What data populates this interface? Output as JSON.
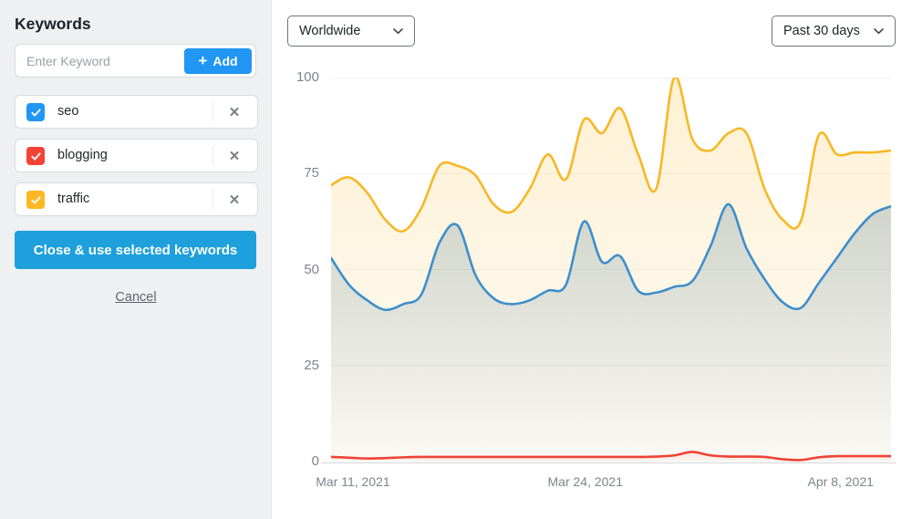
{
  "sidebar": {
    "title": "Keywords",
    "keyword_input": {
      "placeholder": "Enter Keyword",
      "add_label": "Add"
    },
    "keywords": [
      {
        "label": "seo",
        "checked": true,
        "color": "#2196f3"
      },
      {
        "label": "blogging",
        "checked": true,
        "color": "#f44336"
      },
      {
        "label": "traffic",
        "checked": true,
        "color": "#fcb722"
      }
    ],
    "remove_glyph": "✕",
    "close_button_label": "Close & use selected keywords",
    "cancel_label": "Cancel"
  },
  "toolbar": {
    "region_selected": "Worldwide",
    "range_selected": "Past 30 days"
  },
  "icons": {
    "add": "plus-icon",
    "dropdowns": "chevron-down-icon",
    "keyword_remove": "close-x-icon",
    "keyword_checkbox": "checkmark-icon"
  },
  "chart_data": {
    "type": "area",
    "title": "",
    "xlabel": "",
    "ylabel": "",
    "ylim": [
      0,
      100
    ],
    "yticks": [
      0,
      25,
      50,
      75,
      100
    ],
    "grid": true,
    "legend": "none",
    "xticks": [
      {
        "label": "Mar 11, 2021",
        "pos": 0.039
      },
      {
        "label": "Mar 24, 2021",
        "pos": 0.454
      },
      {
        "label": "Apr 8, 2021",
        "pos": 0.91
      }
    ],
    "series": [
      {
        "name": "traffic",
        "color": "#f7b825",
        "fill_top": "rgba(247,184,37,0.20)",
        "fill_bottom": "rgba(247,184,37,0.04)",
        "values": [
          72,
          74,
          70,
          63,
          60,
          66,
          77,
          77,
          74.5,
          67,
          65,
          71,
          80,
          73.5,
          89,
          85.5,
          92,
          80,
          71,
          100,
          84,
          81,
          85.5,
          85.5,
          71,
          63,
          62.5,
          85,
          80,
          80.5,
          80.5,
          81
        ]
      },
      {
        "name": "seo",
        "color": "#3e8ecb",
        "fill_top": "rgba(62,110,140,0.24)",
        "fill_bottom": "rgba(62,110,140,0.02)",
        "values": [
          53,
          46,
          42,
          39.5,
          41,
          43.5,
          57,
          61.5,
          48.5,
          42.5,
          41,
          42,
          44.5,
          46,
          62.5,
          52,
          53.5,
          44.5,
          44,
          45.5,
          47,
          56,
          67,
          55.5,
          47.5,
          41.5,
          40,
          46.5,
          53,
          59.5,
          64.5,
          66.5
        ]
      },
      {
        "name": "blogging",
        "color": "#ef4335",
        "fill_top": "rgba(244,67,54,0.10)",
        "fill_bottom": "rgba(244,67,54,0.02)",
        "values": [
          1.2,
          1.0,
          0.8,
          0.9,
          1.1,
          1.2,
          1.2,
          1.2,
          1.2,
          1.2,
          1.2,
          1.2,
          1.2,
          1.2,
          1.2,
          1.2,
          1.2,
          1.2,
          1.3,
          1.6,
          2.5,
          1.6,
          1.3,
          1.3,
          1.2,
          0.6,
          0.4,
          1.1,
          1.4,
          1.4,
          1.4,
          1.4
        ]
      }
    ]
  }
}
